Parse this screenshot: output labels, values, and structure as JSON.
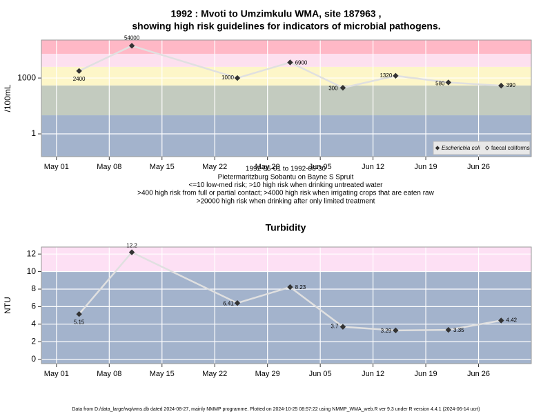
{
  "chart_data": [
    {
      "type": "line",
      "log_scale": true,
      "title": [
        "1992 : Mvoti to Umzimkulu WMA, site 187963 ,",
        "showing high risk guidelines for indicators of microbial pathogens."
      ],
      "y_label": "/100mL",
      "notes": [
        "1992-05-01 to 1992-06-30",
        "Pietermaritzburg Sobantu on Bayne S Spruit",
        "<=10 low-med risk; >10 high risk when drinking untreated water",
        ">400 high risk from full or partial contact; >4000 high risk when irrigating crops that are eaten raw",
        ">20000 high risk when drinking after only limited treatment"
      ],
      "x": [
        "1992-05-04",
        "1992-05-11",
        "1992-05-25",
        "1992-06-01",
        "1992-06-08",
        "1992-06-15",
        "1992-06-22",
        "1992-06-29"
      ],
      "xlim": [
        "1992-04-29",
        "1992-07-03"
      ],
      "xticks": [
        {
          "value": "1992-05-01",
          "label": "May 01"
        },
        {
          "value": "1992-05-08",
          "label": "May 08"
        },
        {
          "value": "1992-05-15",
          "label": "May 15"
        },
        {
          "value": "1992-05-22",
          "label": "May 22"
        },
        {
          "value": "1992-05-29",
          "label": "May 29"
        },
        {
          "value": "1992-06-05",
          "label": "Jun 05"
        },
        {
          "value": "1992-06-12",
          "label": "Jun 12"
        },
        {
          "value": "1992-06-19",
          "label": "Jun 19"
        },
        {
          "value": "1992-06-26",
          "label": "Jun 26"
        }
      ],
      "ylim": [
        0.06,
        110000
      ],
      "yticks": [
        1,
        1000
      ],
      "grid": true,
      "bands": [
        {
          "from": 0.06,
          "to": 10,
          "color": "#a3b3cc"
        },
        {
          "from": 10,
          "to": 400,
          "color": "#c3cbbf"
        },
        {
          "from": 400,
          "to": 4000,
          "color": "#fdf6c8"
        },
        {
          "from": 4000,
          "to": 20000,
          "color": "#fde0ef"
        },
        {
          "from": 20000,
          "to": 110000,
          "color": "#ffb8c6"
        }
      ],
      "legend": "bottom-right",
      "series": [
        {
          "name": "Escherichia coli",
          "color": "#333333",
          "marker": "filled",
          "values": [
            2400,
            54000,
            1000,
            6900,
            300,
            1320,
            580,
            390
          ]
        },
        {
          "name": "faecal coliforms",
          "color": "#333333",
          "marker": "open",
          "values": [
            null,
            null,
            null,
            null,
            null,
            null,
            null,
            null
          ]
        }
      ]
    },
    {
      "type": "line",
      "log_scale": false,
      "title": "Turbidity",
      "y_label": "NTU",
      "x": [
        "1992-05-04",
        "1992-05-11",
        "1992-05-25",
        "1992-06-01",
        "1992-06-08",
        "1992-06-15",
        "1992-06-22",
        "1992-06-29"
      ],
      "xlim": [
        "1992-04-29",
        "1992-07-03"
      ],
      "xticks": [
        {
          "value": "1992-05-01",
          "label": "May 01"
        },
        {
          "value": "1992-05-08",
          "label": "May 08"
        },
        {
          "value": "1992-05-15",
          "label": "May 15"
        },
        {
          "value": "1992-05-22",
          "label": "May 22"
        },
        {
          "value": "1992-05-29",
          "label": "May 29"
        },
        {
          "value": "1992-06-05",
          "label": "Jun 05"
        },
        {
          "value": "1992-06-12",
          "label": "Jun 12"
        },
        {
          "value": "1992-06-19",
          "label": "Jun 19"
        },
        {
          "value": "1992-06-26",
          "label": "Jun 26"
        }
      ],
      "ylim": [
        -0.5,
        12.8
      ],
      "yticks": [
        0,
        2,
        4,
        6,
        8,
        10,
        12
      ],
      "grid": true,
      "bands": [
        {
          "from": -0.5,
          "to": 10,
          "color": "#a3b3cc"
        },
        {
          "from": 10,
          "to": 12.8,
          "color": "#fde0f4"
        }
      ],
      "series": [
        {
          "name": "Turbidity",
          "color": "#333333",
          "marker": "filled",
          "values": [
            5.15,
            12.2,
            6.41,
            8.23,
            3.7,
            3.29,
            3.35,
            4.42
          ]
        }
      ]
    }
  ],
  "footer": "Data from D:/data_large/wq/wms.db dated 2024-08-27, mainly NMMP programme. Plotted on 2024-10-25 08:57:22 using NMMP_WMA_web.R ver 9.3 under R version 4.4.1 (2024-06-14 ucrt)"
}
